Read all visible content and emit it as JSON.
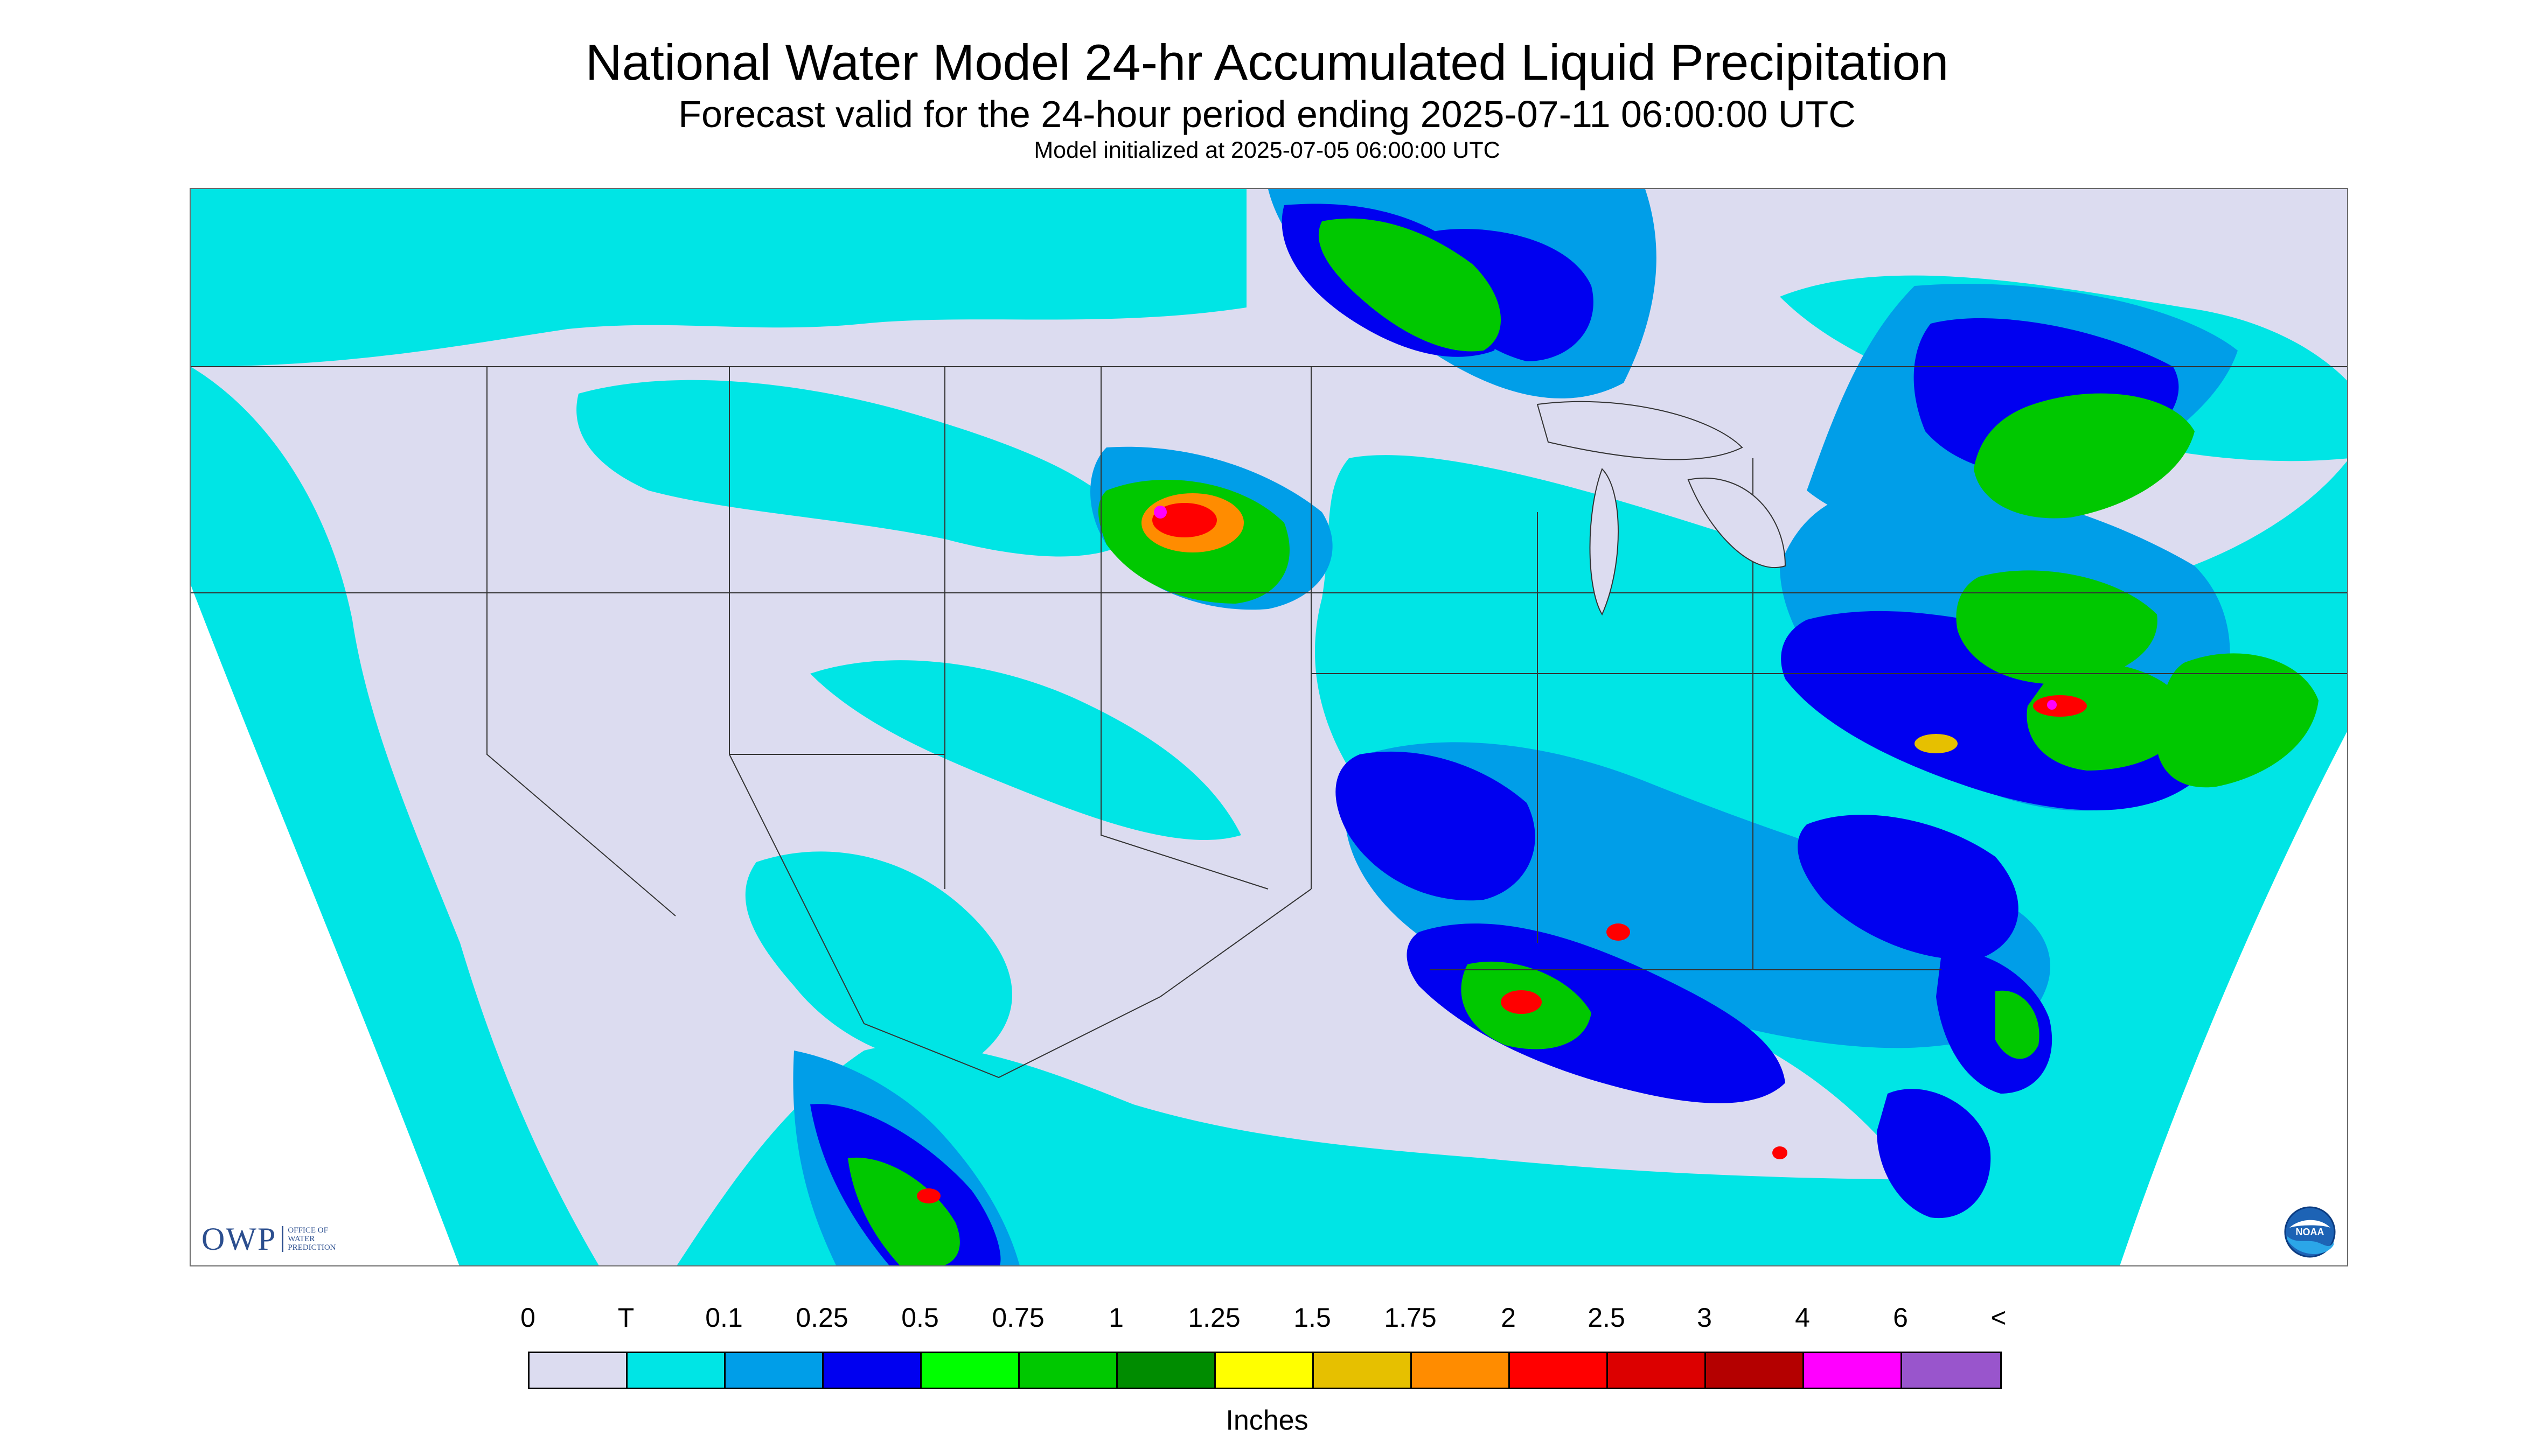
{
  "header": {
    "title": "National Water Model 24-hr Accumulated Liquid Precipitation",
    "subtitle": "Forecast valid for the 24-hour period ending 2025-07-11 06:00:00 UTC",
    "init_line": "Model initialized at 2025-07-05 06:00:00 UTC"
  },
  "map": {
    "background_color": "#dcdcf0",
    "base_precip_color": "#00e5e5",
    "logos": {
      "owp": {
        "text": "OWP",
        "sub_lines": [
          "OFFICE OF",
          "WATER",
          "PREDICTION"
        ],
        "icon": "owp-logo"
      },
      "noaa": {
        "icon": "noaa-logo",
        "text": "NOAA"
      }
    }
  },
  "legend": {
    "labels": [
      "0",
      "T",
      "0.1",
      "0.25",
      "0.5",
      "0.75",
      "1",
      "1.25",
      "1.5",
      "1.75",
      "2",
      "2.5",
      "3",
      "4",
      "6",
      "<"
    ],
    "colors": [
      "#dcdcf0",
      "#00e5e5",
      "#009ee8",
      "#0000f0",
      "#00ff00",
      "#00c800",
      "#008c00",
      "#ffff00",
      "#e6c000",
      "#ff8c00",
      "#ff0000",
      "#dc0000",
      "#b40000",
      "#ff00ff",
      "#9955cc"
    ],
    "unit": "Inches"
  }
}
